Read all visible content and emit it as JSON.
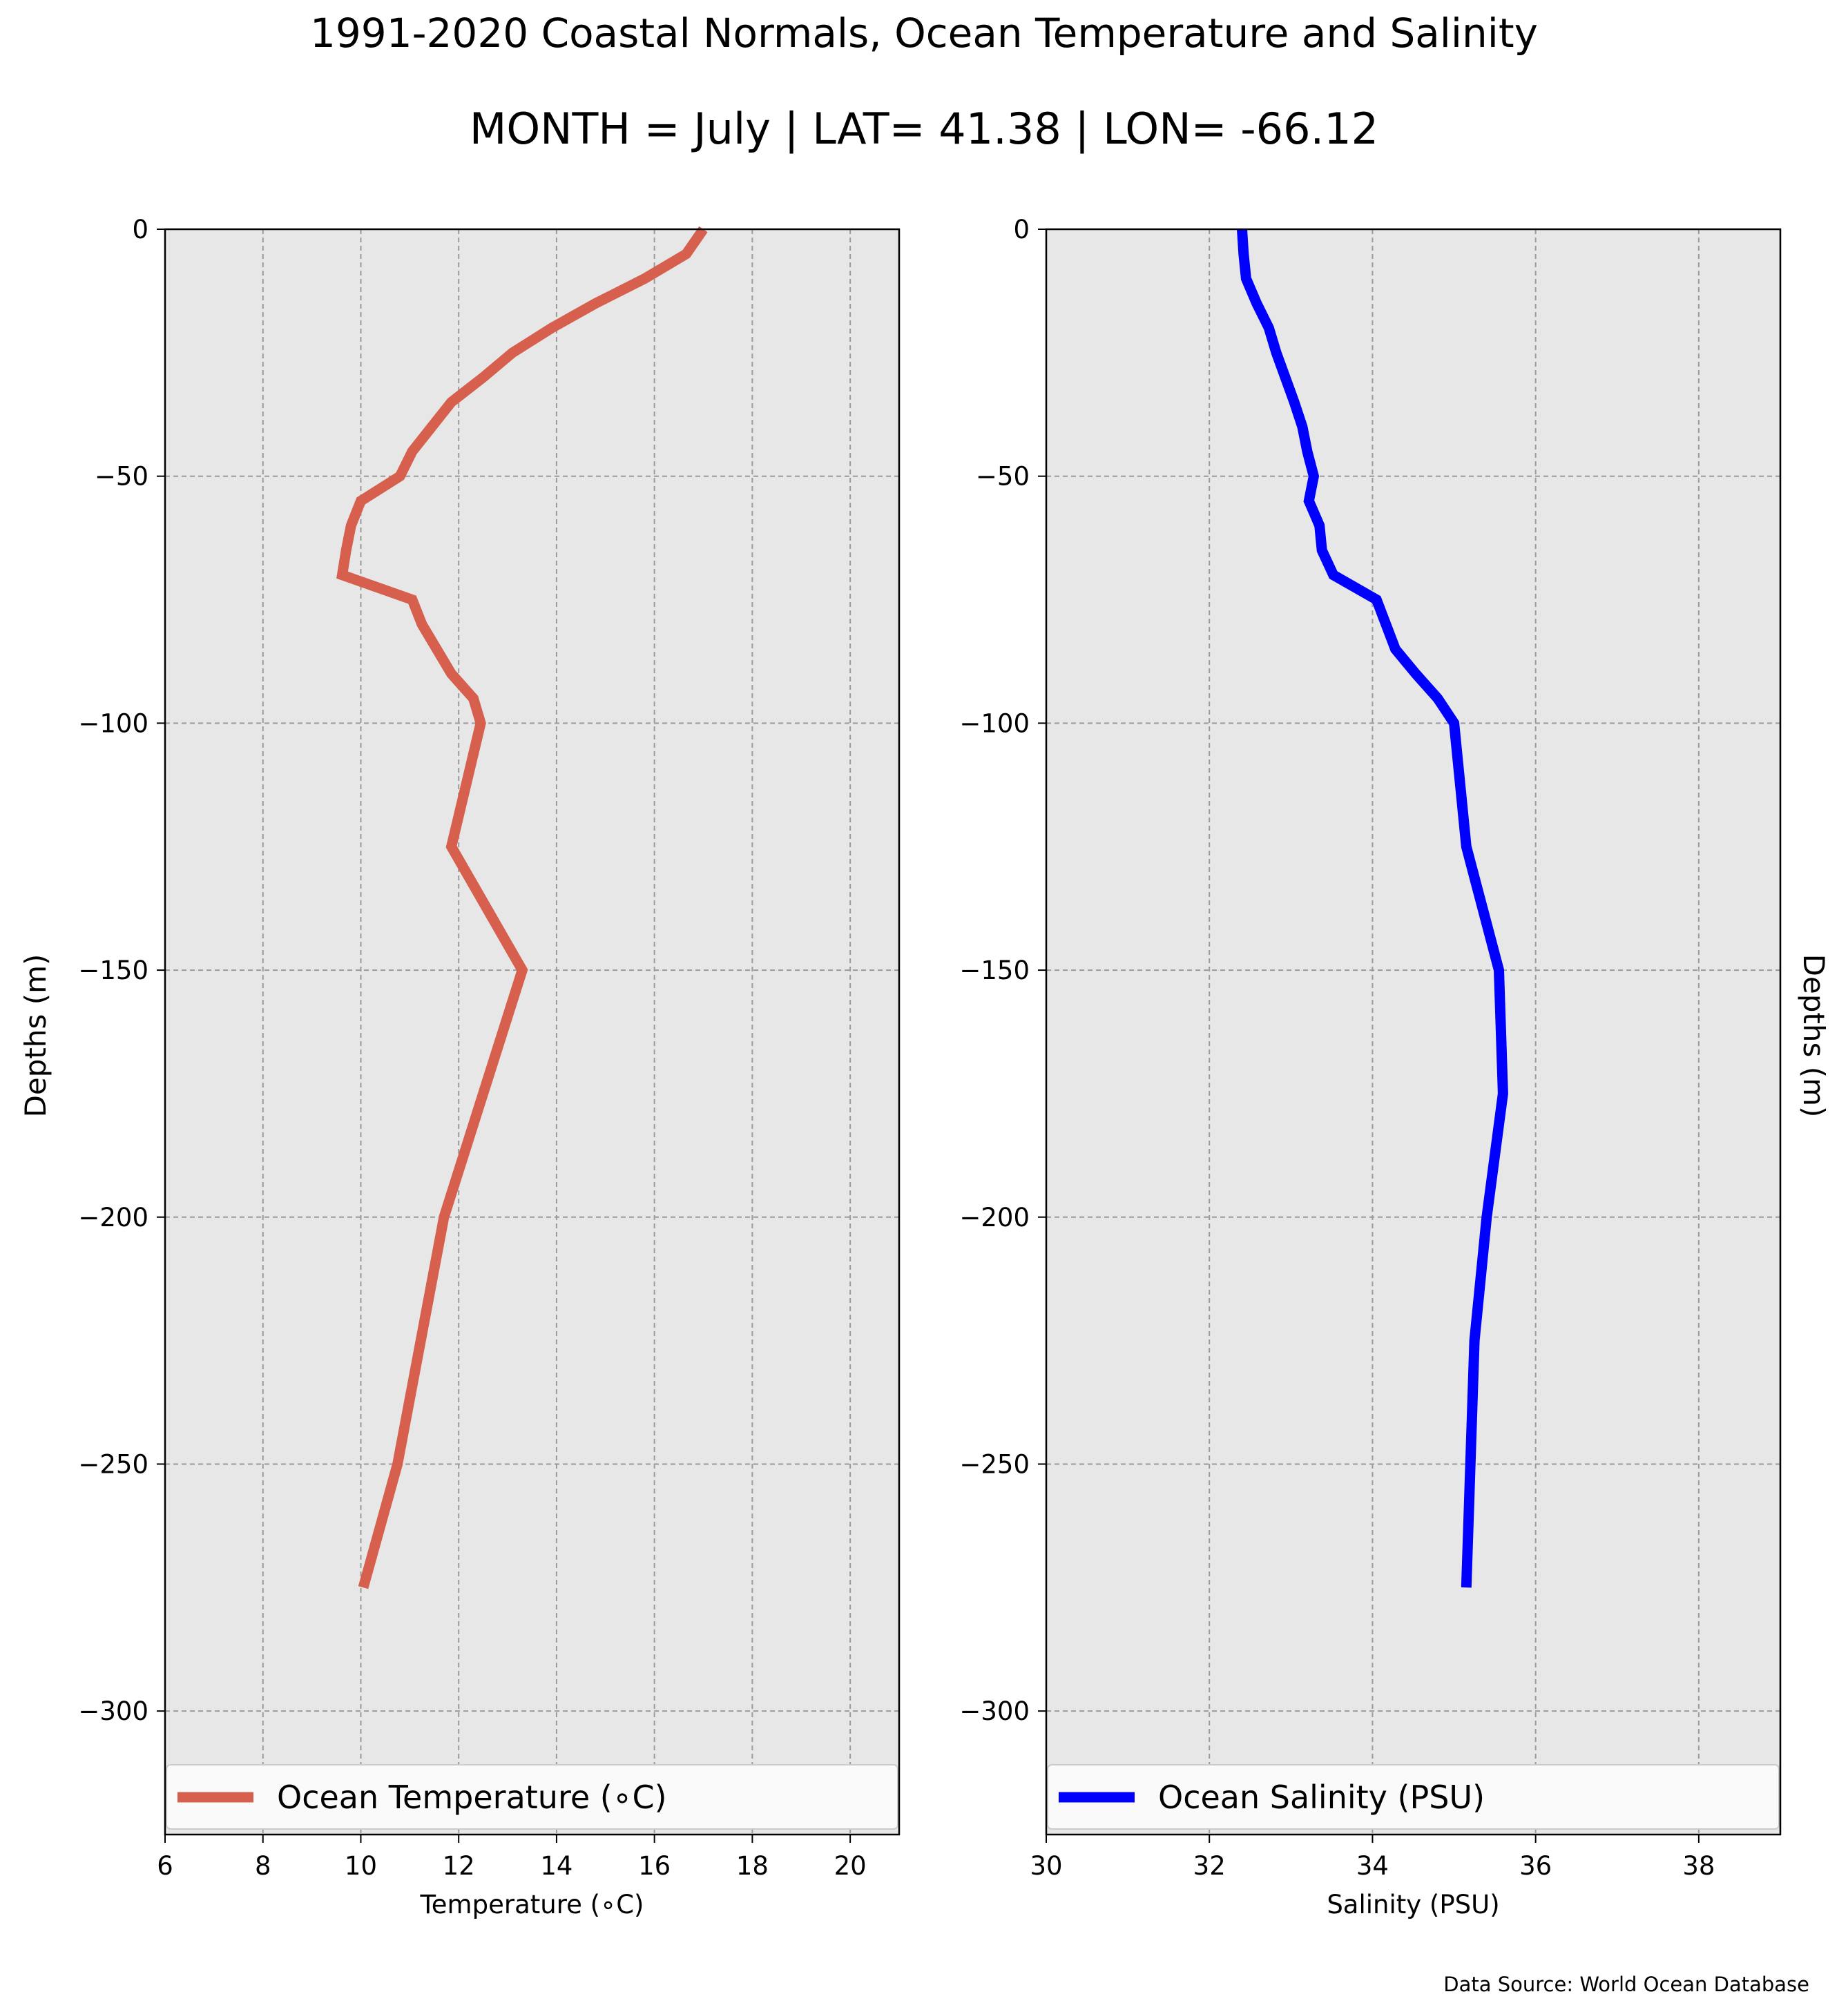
{
  "title": "1991-2020 Coastal Normals, Ocean Temperature and Salinity",
  "subtitle": "MONTH = July | LAT= 41.38 | LON= -66.12",
  "source": "Data Source: World Ocean Database",
  "chart_data": [
    {
      "type": "line",
      "xlabel": "Temperature ($^\\circ$C)",
      "xlabel_display": "Temperature (∘C)",
      "ylabel": "Depths (m)",
      "xlim": [
        6,
        21
      ],
      "ylim": [
        -325,
        0
      ],
      "x_ticks": [
        6,
        8,
        10,
        12,
        14,
        16,
        18,
        20
      ],
      "y_ticks": [
        0,
        -50,
        -100,
        -150,
        -200,
        -250,
        -300
      ],
      "grid": true,
      "legend_position": "lower-center",
      "color": "#d6604d",
      "series": [
        {
          "name": "Ocean Temperature (∘C)",
          "x": [
            17.0,
            16.65,
            15.8,
            14.8,
            13.9,
            13.1,
            12.5,
            11.85,
            11.45,
            11.05,
            10.8,
            10.0,
            9.8,
            9.7,
            9.62,
            11.05,
            11.25,
            11.55,
            11.85,
            12.3,
            12.45,
            11.85,
            13.3,
            11.7,
            10.75,
            10.05
          ],
          "y": [
            0,
            -5,
            -10,
            -15,
            -20,
            -25,
            -30,
            -35,
            -40,
            -45,
            -50,
            -55,
            -60,
            -65,
            -70,
            -75,
            -80,
            -85,
            -90,
            -95,
            -100,
            -125,
            -150,
            -200,
            -250,
            -275
          ]
        }
      ]
    },
    {
      "type": "line",
      "xlabel": "Salinity (PSU)",
      "ylabel": "Depths (m)",
      "xlim": [
        30,
        39
      ],
      "ylim": [
        -325,
        0
      ],
      "x_ticks": [
        30,
        32,
        34,
        36,
        38
      ],
      "y_ticks": [
        0,
        -50,
        -100,
        -150,
        -200,
        -250,
        -300
      ],
      "grid": true,
      "legend_position": "lower-center",
      "color": "#0000ff",
      "series": [
        {
          "name": "Ocean Salinity (PSU)",
          "x": [
            32.4,
            32.42,
            32.45,
            32.58,
            32.73,
            32.82,
            32.93,
            33.04,
            33.14,
            33.2,
            33.28,
            33.22,
            33.35,
            33.38,
            33.52,
            34.05,
            34.28,
            34.53,
            34.8,
            35.0,
            35.15,
            35.55,
            35.6,
            35.4,
            35.25,
            35.15
          ],
          "y": [
            0,
            -5,
            -10,
            -15,
            -20,
            -25,
            -30,
            -35,
            -40,
            -45,
            -50,
            -55,
            -60,
            -65,
            -70,
            -75,
            -85,
            -90,
            -95,
            -100,
            -125,
            -150,
            -175,
            -200,
            -225,
            -275
          ]
        }
      ]
    }
  ]
}
